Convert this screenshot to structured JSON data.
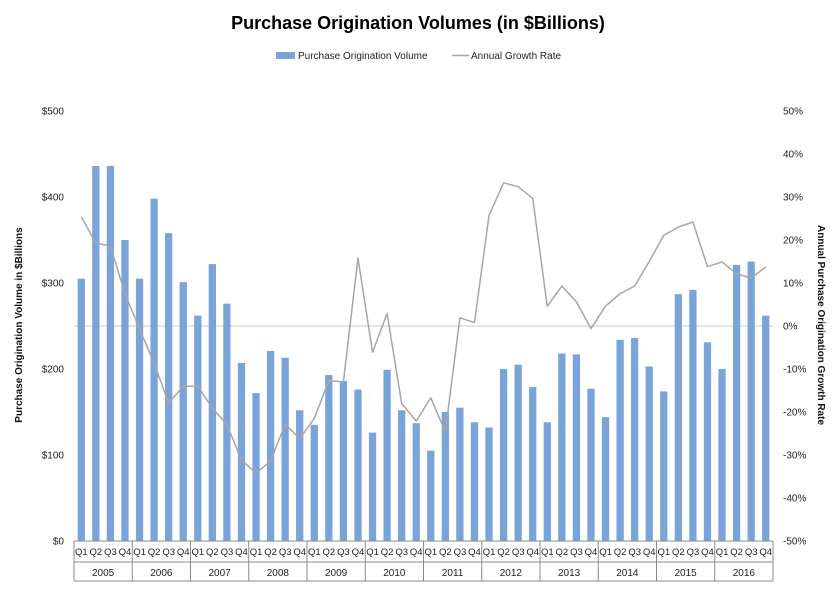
{
  "chart_data": {
    "type": "bar",
    "title": "Purchase Origination Volumes (in $Billions)",
    "ylabel": "Purchase Origination Volume in $Billions",
    "y2label": "Annual Purchase Origination Growth Rate",
    "ylim": [
      0,
      500
    ],
    "y2lim": [
      -50,
      50
    ],
    "y_ticks": [
      "$0",
      "$100",
      "$200",
      "$300",
      "$400",
      "$500"
    ],
    "y2_ticks": [
      "-50%",
      "-40%",
      "-30%",
      "-20%",
      "-10%",
      "0%",
      "10%",
      "20%",
      "30%",
      "40%",
      "50%"
    ],
    "quarters": [
      "Q1",
      "Q2",
      "Q3",
      "Q4"
    ],
    "years": [
      "2005",
      "2006",
      "2007",
      "2008",
      "2009",
      "2010",
      "2011",
      "2012",
      "2013",
      "2014",
      "2015",
      "2016"
    ],
    "legend": {
      "placement": "top",
      "entries": [
        "Purchase Origination Volume",
        "Annual Growth Rate"
      ]
    },
    "colors": {
      "bar": "#7aa3d9",
      "line": "#a6a6a6",
      "zero_line": "#c8c8c8",
      "axis": "#888888"
    },
    "series": [
      {
        "name": "Purchase Origination Volume",
        "kind": "bar",
        "axis": "left",
        "values": [
          305,
          436,
          436,
          350,
          305,
          398,
          358,
          301,
          262,
          322,
          276,
          207,
          172,
          221,
          213,
          152,
          135,
          193,
          186,
          176,
          126,
          199,
          152,
          137,
          105,
          150,
          155,
          138,
          132,
          200,
          205,
          179,
          138,
          218,
          217,
          177,
          144,
          234,
          236,
          203,
          174,
          287,
          292,
          231,
          200,
          321,
          325,
          262
        ]
      },
      {
        "name": "Annual Growth Rate",
        "kind": "line",
        "axis": "right",
        "values": [
          25.4,
          19.3,
          18.6,
          7.5,
          -0.6,
          -8.7,
          -17.9,
          -14.0,
          -14.0,
          -19.1,
          -22.9,
          -31.2,
          -34.2,
          -31.4,
          -22.8,
          -26.2,
          -21.5,
          -12.7,
          -13.0,
          15.8,
          -6.1,
          2.9,
          -18.0,
          -22.1,
          -16.7,
          -24.6,
          1.9,
          0.8,
          25.7,
          33.3,
          32.4,
          29.7,
          4.6,
          9.3,
          5.6,
          -0.6,
          4.6,
          7.5,
          9.3,
          15.0,
          21.1,
          23.0,
          24.2,
          13.8,
          14.9,
          12.1,
          11.2,
          13.7
        ]
      }
    ]
  }
}
